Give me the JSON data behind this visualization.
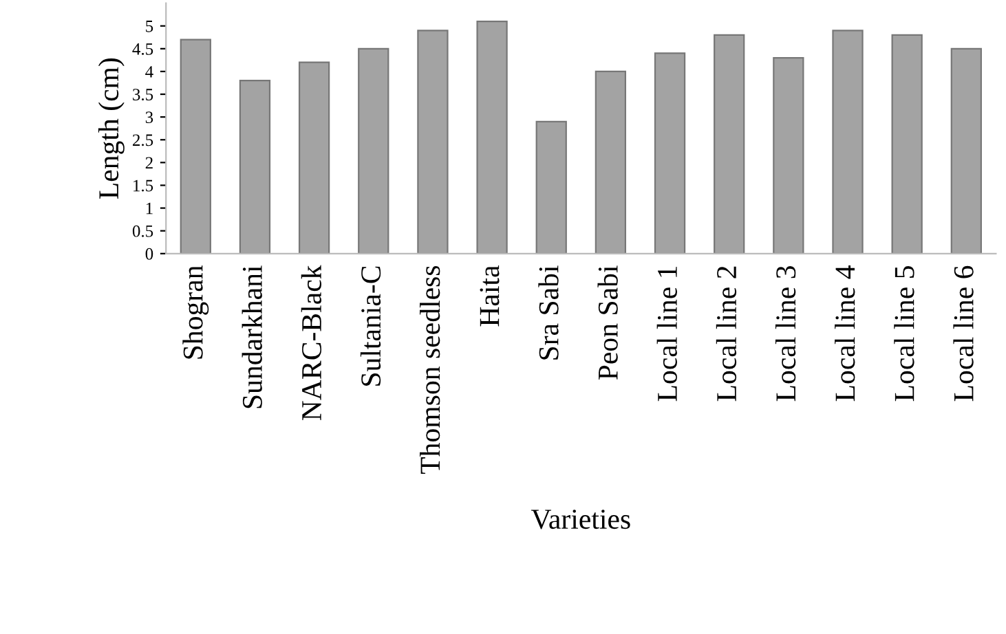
{
  "chart_data": {
    "type": "bar",
    "xlabel": "Varieties",
    "ylabel": "Length (cm)",
    "categories": [
      "Shogran",
      "Sundarkhani",
      "NARC-Black",
      "Sultania-C",
      "Thomson seedless",
      "Haita",
      "Sra Sabi",
      "Peon Sabi",
      "Local line 1",
      "Local line 2",
      "Local line 3",
      "Local line 4",
      "Local line 5",
      "Local line 6"
    ],
    "values": [
      4.7,
      3.8,
      4.2,
      4.5,
      4.9,
      5.1,
      2.9,
      4.0,
      4.4,
      4.8,
      4.3,
      4.9,
      4.8,
      4.5
    ],
    "color": "#a3a3a3",
    "ylim": [
      0,
      5.5
    ],
    "yticks": [
      0,
      0.5,
      1,
      1.5,
      2,
      2.5,
      3,
      3.5,
      4,
      4.5,
      5
    ],
    "grid": false
  }
}
